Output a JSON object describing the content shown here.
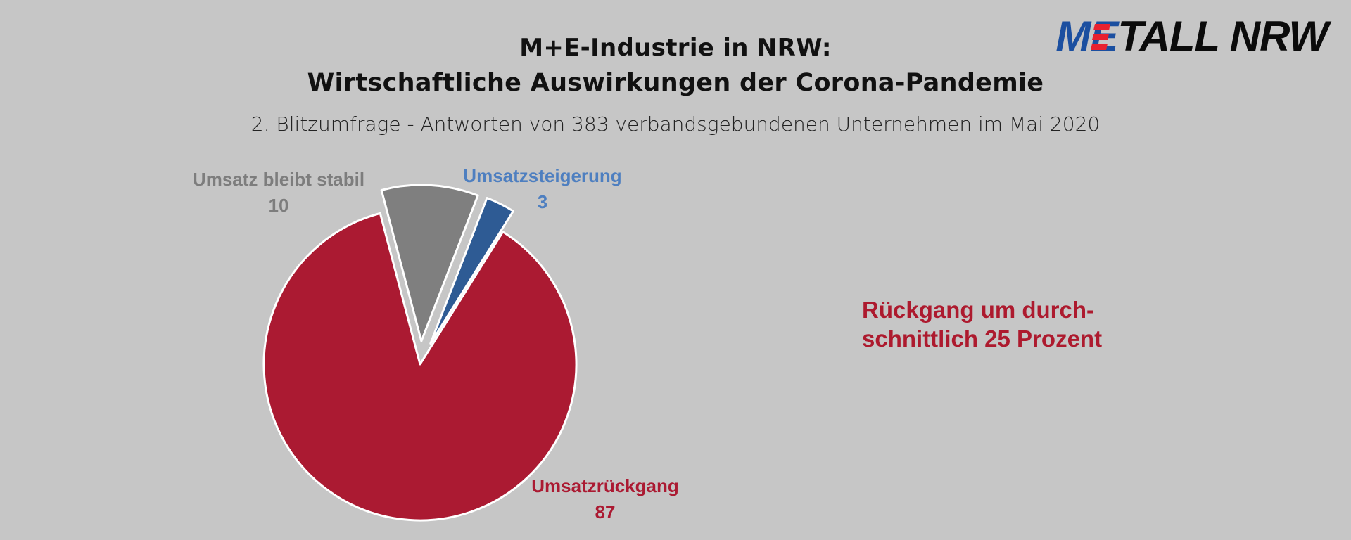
{
  "logo": {
    "m": "ME",
    "rest": "TALL NRW"
  },
  "titles": {
    "line1": "M+E-Industrie in NRW:",
    "line2": "Wirtschaftliche Auswirkungen der Corona-Pandemie",
    "subtitle": "2. Blitzumfrage - Antworten von 383 verbandsgebundenen Unternehmen im Mai 2020"
  },
  "note": {
    "line1": "Rückgang um durch-",
    "line2": "schnittlich 25 Prozent"
  },
  "colors": {
    "decline": "#ab1a32",
    "stable": "#7f7f7f",
    "increase": "#2e5b94",
    "label_stable": "#7d7d7d",
    "label_increase": "#4e7fc0",
    "label_decline": "#ab1a32",
    "background": "#c6c6c6"
  },
  "chart_data": {
    "type": "pie",
    "title": "",
    "slices": [
      {
        "label": "Umsatzrückgang",
        "value": 87
      },
      {
        "label": "Umsatz bleibt stabil",
        "value": 10
      },
      {
        "label": "Umsatzsteigerung",
        "value": 3
      }
    ],
    "exploded": [
      "Umsatz bleibt stabil",
      "Umsatzsteigerung"
    ],
    "legend": "none"
  }
}
